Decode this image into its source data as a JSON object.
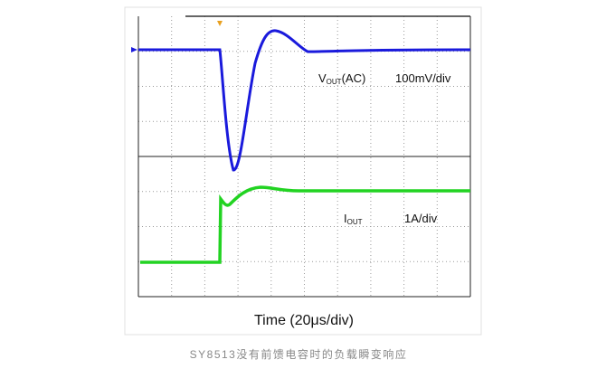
{
  "trace_labels": {
    "vout": {
      "symbol": "V",
      "subscript": "OUT",
      "suffix": "(AC)",
      "scale": "100mV/div"
    },
    "iout": {
      "symbol": "I",
      "subscript": "OUT",
      "scale": "1A/div"
    }
  },
  "x_axis_label": "Time (20μs/div)",
  "caption": "SY8513没有前馈电容时的负载瞬变响应"
}
